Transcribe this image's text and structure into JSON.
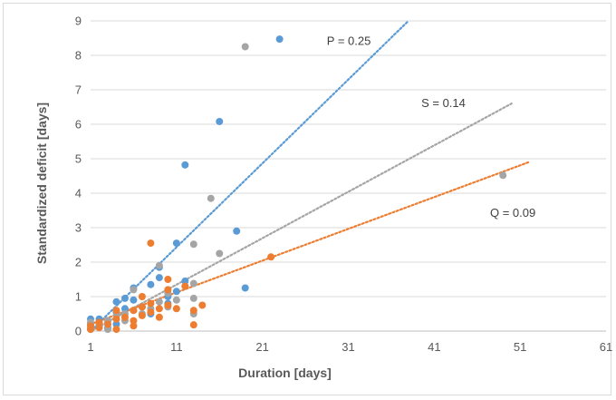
{
  "chart_data": {
    "type": "scatter",
    "title": "",
    "xlabel": "Duration [days]",
    "ylabel": "Standardized deficit [days]",
    "xlim": [
      1,
      61
    ],
    "ylim": [
      0,
      9
    ],
    "xticks": [
      "1",
      "11",
      "21",
      "31",
      "41",
      "51",
      "61"
    ],
    "yticks": [
      "0",
      "1",
      "2",
      "3",
      "4",
      "5",
      "6",
      "7",
      "8",
      "9"
    ],
    "grid": "horizontal",
    "legend": "none",
    "series": [
      {
        "color": "#5b9bd5",
        "points": [
          [
            1,
            0.35
          ],
          [
            1,
            0.2
          ],
          [
            1,
            0.05
          ],
          [
            2,
            0.35
          ],
          [
            2,
            0.15
          ],
          [
            3,
            0.3
          ],
          [
            3,
            0.1
          ],
          [
            4,
            0.85
          ],
          [
            4,
            0.55
          ],
          [
            4,
            0.2
          ],
          [
            5,
            0.95
          ],
          [
            5,
            0.65
          ],
          [
            6,
            1.25
          ],
          [
            6,
            0.9
          ],
          [
            7,
            0.7
          ],
          [
            8,
            1.35
          ],
          [
            8,
            0.5
          ],
          [
            9,
            1.55
          ],
          [
            9,
            1.85
          ],
          [
            10,
            1.0
          ],
          [
            10,
            0.8
          ],
          [
            11,
            2.55
          ],
          [
            11,
            1.15
          ],
          [
            12,
            4.82
          ],
          [
            12,
            1.45
          ],
          [
            16,
            6.08
          ],
          [
            18,
            2.9
          ],
          [
            19,
            1.25
          ],
          [
            23,
            8.47
          ]
        ],
        "trendline": {
          "label": "P = 0.25",
          "x": [
            1,
            38
          ],
          "y": [
            0,
            9
          ]
        }
      },
      {
        "color": "#a5a5a5",
        "points": [
          [
            1,
            0.25
          ],
          [
            1,
            0.1
          ],
          [
            2,
            0.2
          ],
          [
            3,
            0.3
          ],
          [
            3,
            0.05
          ],
          [
            4,
            0.45
          ],
          [
            5,
            0.5
          ],
          [
            5,
            0.3
          ],
          [
            6,
            1.2
          ],
          [
            6,
            0.6
          ],
          [
            7,
            0.5
          ],
          [
            8,
            0.65
          ],
          [
            9,
            1.9
          ],
          [
            9,
            0.85
          ],
          [
            10,
            1.1
          ],
          [
            10,
            0.7
          ],
          [
            11,
            0.9
          ],
          [
            12,
            1.3
          ],
          [
            13,
            2.52
          ],
          [
            13,
            1.38
          ],
          [
            13,
            0.95
          ],
          [
            13,
            0.5
          ],
          [
            15,
            3.85
          ],
          [
            16,
            2.25
          ],
          [
            19,
            8.25
          ],
          [
            49,
            4.52
          ]
        ],
        "trendline": {
          "label": "S = 0.14",
          "x": [
            1,
            50
          ],
          "y": [
            0,
            6.6
          ]
        }
      },
      {
        "color": "#ed7d31",
        "points": [
          [
            1,
            0.15
          ],
          [
            1,
            0.05
          ],
          [
            2,
            0.25
          ],
          [
            2,
            0.1
          ],
          [
            3,
            0.2
          ],
          [
            4,
            0.6
          ],
          [
            4,
            0.35
          ],
          [
            4,
            0.05
          ],
          [
            5,
            0.4
          ],
          [
            6,
            0.3
          ],
          [
            6,
            0.15
          ],
          [
            6,
            0.6
          ],
          [
            7,
            1.0
          ],
          [
            7,
            0.7
          ],
          [
            7,
            0.45
          ],
          [
            8,
            2.55
          ],
          [
            8,
            0.8
          ],
          [
            8,
            0.55
          ],
          [
            9,
            0.65
          ],
          [
            9,
            0.4
          ],
          [
            10,
            1.5
          ],
          [
            10,
            1.2
          ],
          [
            10,
            0.75
          ],
          [
            11,
            0.65
          ],
          [
            12,
            1.3
          ],
          [
            13,
            0.6
          ],
          [
            13,
            0.18
          ],
          [
            14,
            0.75
          ],
          [
            22,
            2.15
          ]
        ],
        "trendline": {
          "label": "Q = 0.09",
          "x": [
            1,
            52
          ],
          "y": [
            0.2,
            4.9
          ]
        }
      }
    ]
  }
}
